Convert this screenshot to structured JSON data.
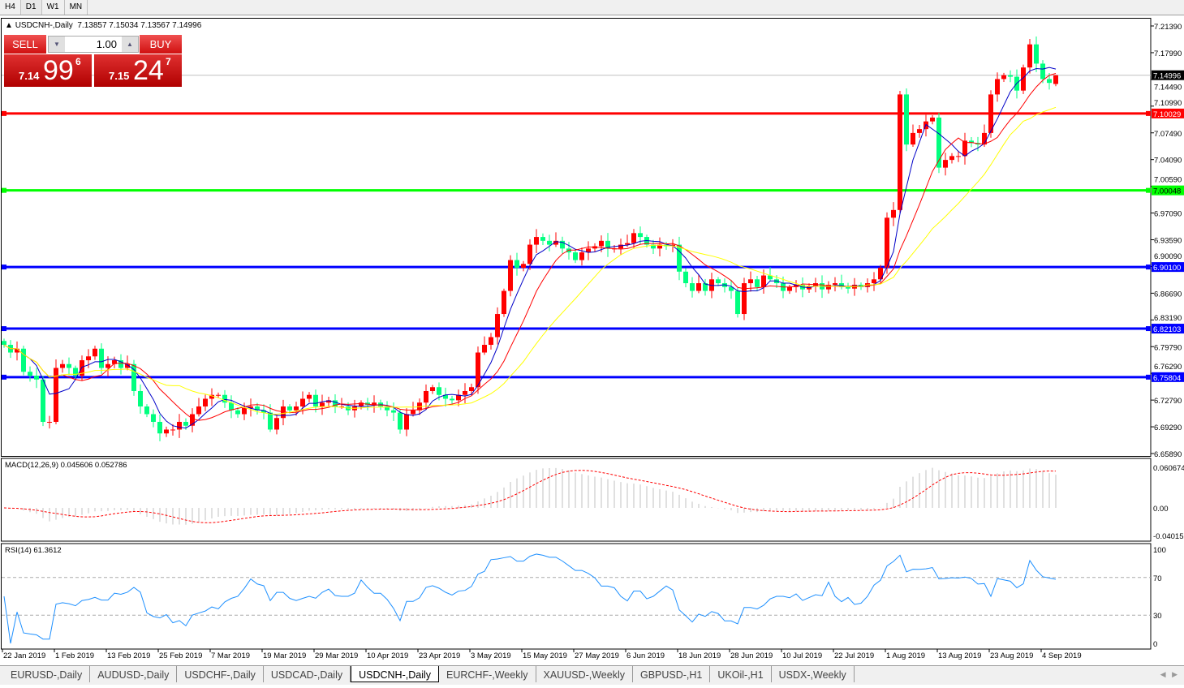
{
  "timeframes": [
    "H4",
    "D1",
    "W1",
    "MN"
  ],
  "active_timeframe": "D1",
  "header": {
    "symbol": "USDCNH-,Daily",
    "ohlc": "7.13857 7.15034 7.13567 7.14996"
  },
  "trade_panel": {
    "sell_label": "SELL",
    "buy_label": "BUY",
    "lot": "1.00",
    "sell_small": "7.14",
    "sell_big": "99",
    "sell_pip": "6",
    "buy_small": "7.15",
    "buy_big": "24",
    "buy_pip": "7"
  },
  "colors": {
    "bull": "#ff0000",
    "bear": "#00ff7f",
    "ma_fast": "#0000c8",
    "ma_mid": "#ff0000",
    "ma_slow": "#ffff00",
    "macd_hist": "#c0c0c0",
    "macd_signal": "#ff0000",
    "rsi": "#1e90ff"
  },
  "chart_data": {
    "type": "candlestick",
    "symbol": "USDCNH-",
    "timeframe": "Daily",
    "ylim": [
      6.6589,
      7.2139
    ],
    "y_ticks": [
      "7.21390",
      "7.17990",
      "7.14490",
      "7.10990",
      "7.07490",
      "7.04090",
      "7.00590",
      "6.97090",
      "6.93590",
      "6.90090",
      "6.86690",
      "6.83190",
      "6.79790",
      "6.76290",
      "6.72790",
      "6.69290",
      "6.65890"
    ],
    "x_ticks": [
      {
        "label": "22 Jan 2019",
        "bar": 0
      },
      {
        "label": "1 Feb 2019",
        "bar": 8
      },
      {
        "label": "13 Feb 2019",
        "bar": 16
      },
      {
        "label": "25 Feb 2019",
        "bar": 24
      },
      {
        "label": "7 Mar 2019",
        "bar": 32
      },
      {
        "label": "19 Mar 2019",
        "bar": 40
      },
      {
        "label": "29 Mar 2019",
        "bar": 48
      },
      {
        "label": "10 Apr 2019",
        "bar": 56
      },
      {
        "label": "23 Apr 2019",
        "bar": 64
      },
      {
        "label": "3 May 2019",
        "bar": 72
      },
      {
        "label": "15 May 2019",
        "bar": 80
      },
      {
        "label": "27 May 2019",
        "bar": 88
      },
      {
        "label": "6 Jun 2019",
        "bar": 96
      },
      {
        "label": "18 Jun 2019",
        "bar": 104
      },
      {
        "label": "28 Jun 2019",
        "bar": 112
      },
      {
        "label": "10 Jul 2019",
        "bar": 120
      },
      {
        "label": "22 Jul 2019",
        "bar": 128
      },
      {
        "label": "1 Aug 2019",
        "bar": 136
      },
      {
        "label": "13 Aug 2019",
        "bar": 144
      },
      {
        "label": "23 Aug 2019",
        "bar": 152
      },
      {
        "label": "4 Sep 2019",
        "bar": 160
      }
    ],
    "closes": [
      6.8,
      6.79,
      6.795,
      6.765,
      6.76,
      6.755,
      6.7,
      6.7,
      6.77,
      6.775,
      6.77,
      6.76,
      6.78,
      6.785,
      6.795,
      6.77,
      6.775,
      6.78,
      6.77,
      6.775,
      6.74,
      6.72,
      6.71,
      6.7,
      6.685,
      6.69,
      6.69,
      6.7,
      6.695,
      6.71,
      6.72,
      6.73,
      6.735,
      6.735,
      6.725,
      6.715,
      6.71,
      6.718,
      6.72,
      6.715,
      6.712,
      6.69,
      6.705,
      6.72,
      6.715,
      6.72,
      6.73,
      6.735,
      6.72,
      6.725,
      6.728,
      6.72,
      6.72,
      6.715,
      6.72,
      6.725,
      6.722,
      6.725,
      6.72,
      6.715,
      6.712,
      6.69,
      6.71,
      6.715,
      6.725,
      6.74,
      6.745,
      6.735,
      6.73,
      6.728,
      6.735,
      6.74,
      6.745,
      6.79,
      6.8,
      6.81,
      6.84,
      6.87,
      6.91,
      6.9,
      6.905,
      6.93,
      6.94,
      6.935,
      6.93,
      6.935,
      6.925,
      6.92,
      6.91,
      6.92,
      6.925,
      6.928,
      6.935,
      6.925,
      6.925,
      6.93,
      6.932,
      6.945,
      6.94,
      6.93,
      6.925,
      6.93,
      6.928,
      6.93,
      6.895,
      6.88,
      6.87,
      6.88,
      6.87,
      6.885,
      6.88,
      6.875,
      6.87,
      6.84,
      6.88,
      6.885,
      6.875,
      6.89,
      6.885,
      6.88,
      6.87,
      6.875,
      6.878,
      6.872,
      6.876,
      6.88,
      6.872,
      6.878,
      6.88,
      6.875,
      6.873,
      6.878,
      6.875,
      6.88,
      6.885,
      6.9,
      6.965,
      6.975,
      7.125,
      7.06,
      7.075,
      7.08,
      7.09,
      7.095,
      7.03,
      7.04,
      7.045,
      7.045,
      7.065,
      7.062,
      7.06,
      7.075,
      7.125,
      7.145,
      7.15,
      7.148,
      7.13,
      7.16,
      7.19,
      7.165,
      7.145,
      7.14,
      7.14996
    ],
    "last_bar": {
      "open": 7.13857,
      "high": 7.15034,
      "low": 7.13567,
      "close": 7.14996
    },
    "current_price": {
      "value": 7.14996,
      "label": "7.14996"
    },
    "levels": [
      {
        "value": 7.10029,
        "label": "7.10029",
        "color": "#ff0000"
      },
      {
        "value": 7.00048,
        "label": "7.00048",
        "color": "#00ff00"
      },
      {
        "value": 6.901,
        "label": "6.90100",
        "color": "#0000ff"
      },
      {
        "value": 6.82103,
        "label": "6.82103",
        "color": "#0000ff"
      },
      {
        "value": 6.75804,
        "label": "6.75804",
        "color": "#0000ff"
      }
    ],
    "macd": {
      "label": "MACD(12,26,9) 0.045606 0.052786",
      "max_label": "0.060674",
      "zero_label": "0.00",
      "min_label": "-0.040152",
      "ylim": [
        -0.040152,
        0.060674
      ]
    },
    "rsi": {
      "label": "RSI(14) 61.3612",
      "ticks": [
        "100",
        "70",
        "30",
        "0"
      ]
    }
  },
  "tabs": [
    "EURUSD-,Daily",
    "AUDUSD-,Daily",
    "USDCHF-,Daily",
    "USDCAD-,Daily",
    "USDCNH-,Daily",
    "EURCHF-,Weekly",
    "XAUUSD-,Weekly",
    "GBPUSD-,H1",
    "UKOil-,H1",
    "USDX-,Weekly"
  ],
  "active_tab": "USDCNH-,Daily"
}
